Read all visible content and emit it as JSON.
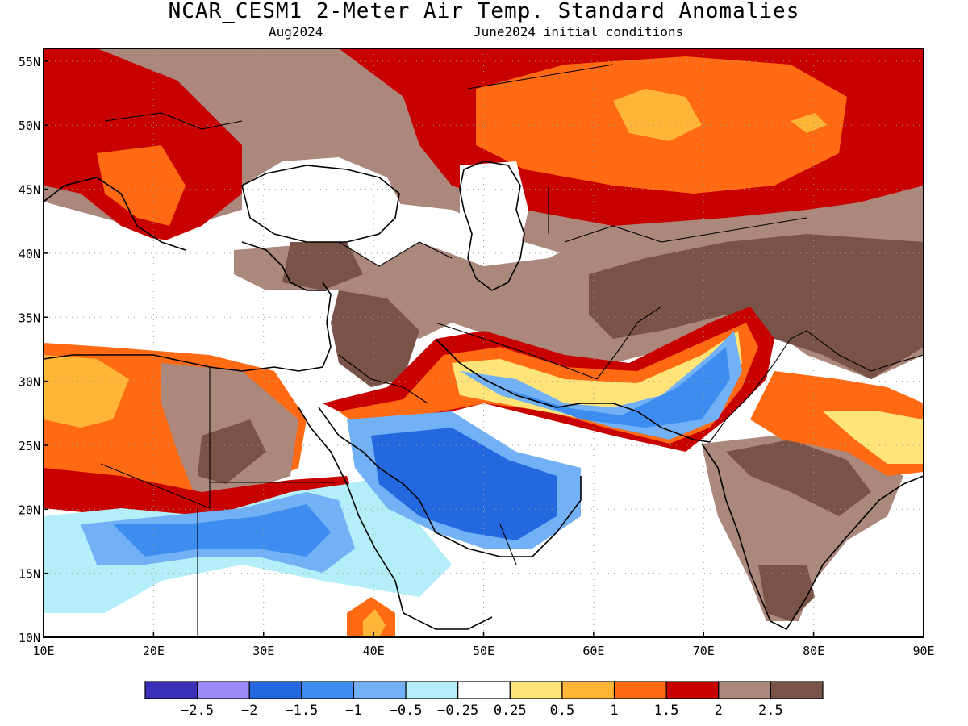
{
  "title": "NCAR_CESM1 2-Meter Air Temp. Standard Anomalies",
  "subtitle_left": "Aug2024",
  "subtitle_right": "June2024 initial conditions",
  "map": {
    "lon_range": [
      10,
      90
    ],
    "lat_range": [
      10,
      56
    ],
    "lon_ticks": [
      {
        "value": 10,
        "label": "10E"
      },
      {
        "value": 20,
        "label": "20E"
      },
      {
        "value": 30,
        "label": "30E"
      },
      {
        "value": 40,
        "label": "40E"
      },
      {
        "value": 50,
        "label": "50E"
      },
      {
        "value": 60,
        "label": "60E"
      },
      {
        "value": 70,
        "label": "70E"
      },
      {
        "value": 80,
        "label": "80E"
      },
      {
        "value": 90,
        "label": "90E"
      }
    ],
    "lat_ticks": [
      {
        "value": 55,
        "label": "55N"
      },
      {
        "value": 50,
        "label": "50N"
      },
      {
        "value": 45,
        "label": "45N"
      },
      {
        "value": 40,
        "label": "40N"
      },
      {
        "value": 35,
        "label": "35N"
      },
      {
        "value": 30,
        "label": "30N"
      },
      {
        "value": 25,
        "label": "25N"
      },
      {
        "value": 20,
        "label": "20N"
      },
      {
        "value": 15,
        "label": "15N"
      },
      {
        "value": 10,
        "label": "10N"
      }
    ],
    "grid": true
  },
  "colorbar": {
    "colors": [
      "#3a2fb8",
      "#9b8cf5",
      "#2468e0",
      "#3d8df0",
      "#72b1f5",
      "#b4eef8",
      "#ffffff",
      "#ffe47a",
      "#ffb636",
      "#ff6a12",
      "#c80000",
      "#ab877c",
      "#7a5348"
    ],
    "labels": [
      "-2.5",
      "-2",
      "-1.5",
      "-1",
      "-0.5",
      "-0.25",
      "0.25",
      "0.5",
      "1",
      "1.5",
      "2",
      "2.5"
    ]
  }
}
